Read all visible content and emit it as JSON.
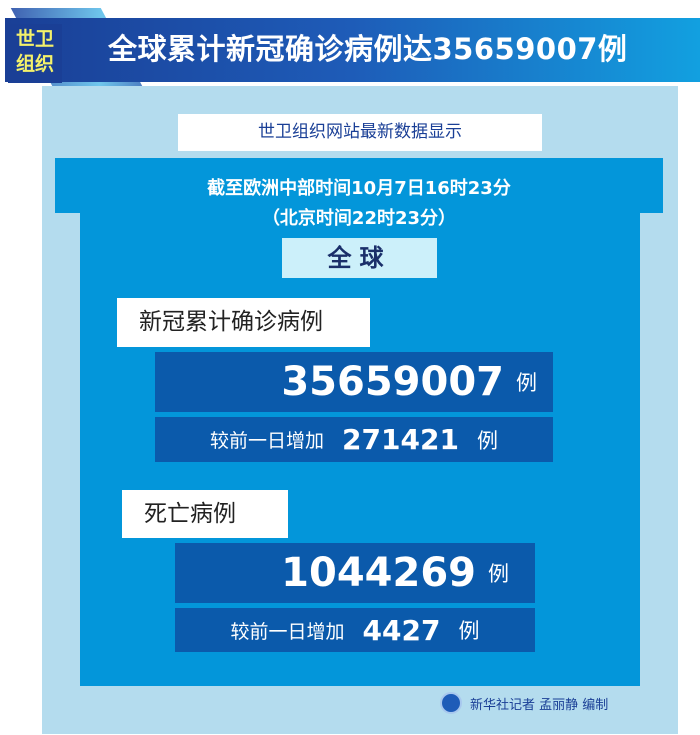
{
  "header": {
    "badge_line1": "世卫",
    "badge_line2": "组织",
    "title": "全球累计新冠确诊病例达35659007例"
  },
  "source": "世卫组织网站最新数据显示",
  "time_line1": "截至欧洲中部时间10月7日16时23分",
  "time_line2": "（北京时间22时23分）",
  "scope": "全球",
  "confirmed": {
    "label": "新冠累计确诊病例",
    "value": "35659007",
    "unit": "例",
    "increase_label": "较前一日增加",
    "increase": "271421",
    "increase_unit": "例"
  },
  "deaths": {
    "label": "死亡病例",
    "value": "1044269",
    "unit": "例",
    "increase_label": "较前一日增加",
    "increase": "4427",
    "increase_unit": "例"
  },
  "credit": "新华社记者 孟丽静 编制",
  "colors": {
    "panel": "#b4dcee",
    "inner": "#0396da",
    "dark_box": "#0b5aab",
    "title_bar": "#1e5cb8"
  }
}
